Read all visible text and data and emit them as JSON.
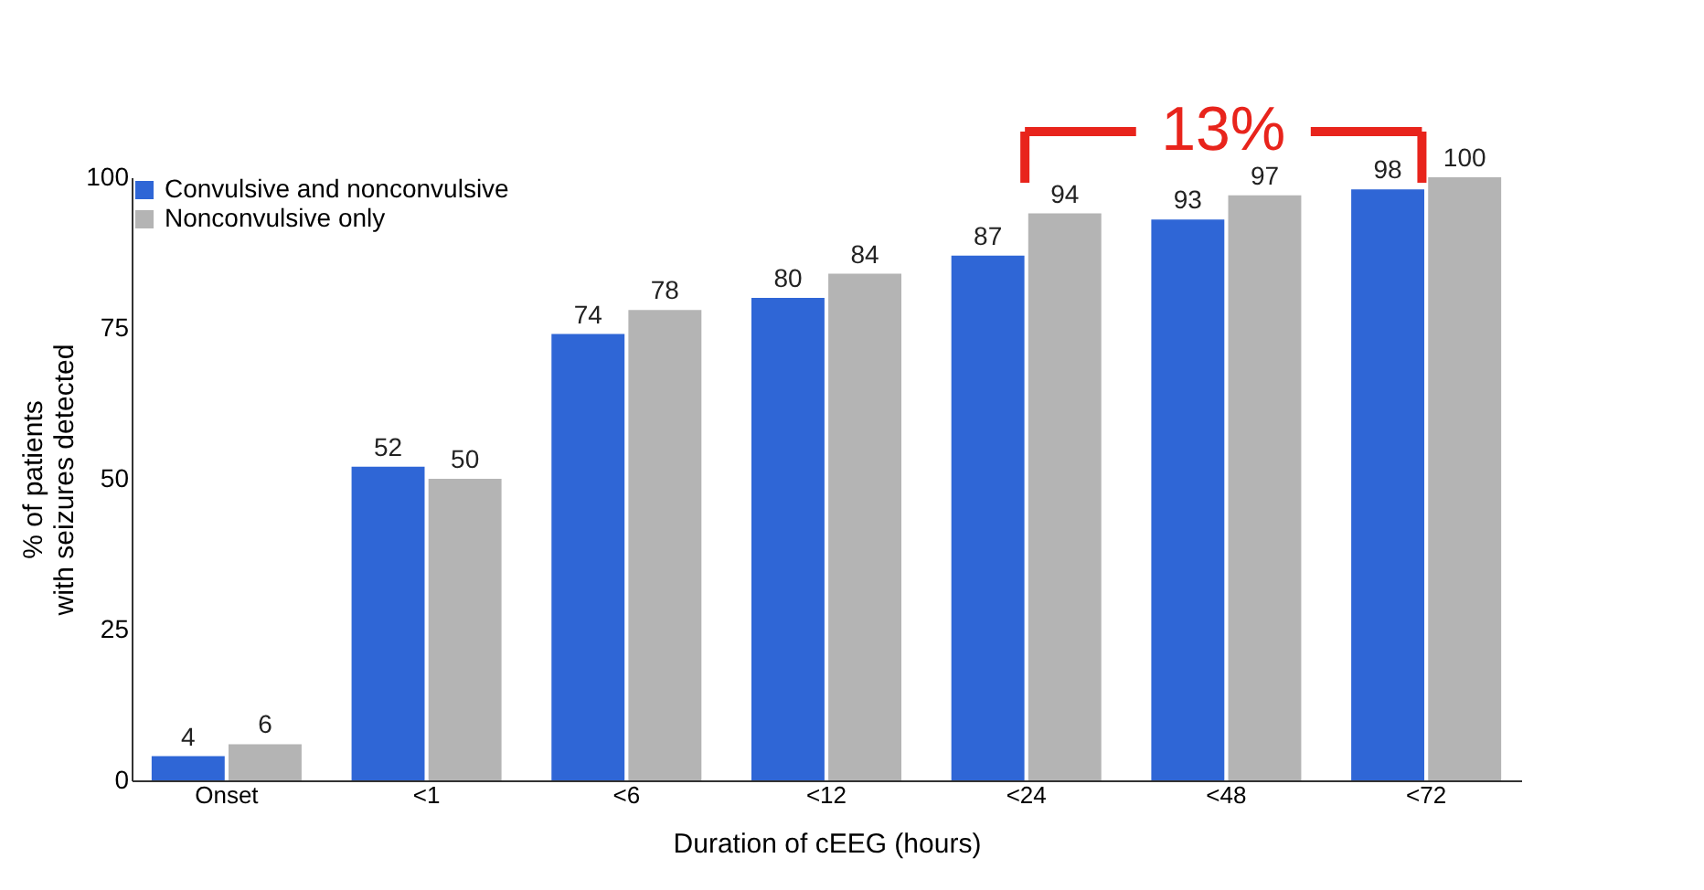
{
  "chart_data": {
    "type": "bar",
    "xlabel": "Duration of cEEG (hours)",
    "ylabel": "% of patients with seizures detected",
    "categories": [
      "Onset",
      "<1",
      "<6",
      "<12",
      "<24",
      "<48",
      "<72"
    ],
    "series": [
      {
        "name": "Convulsive and nonconvulsive",
        "color": "#2f66d6",
        "values": [
          4,
          52,
          74,
          80,
          87,
          93,
          98
        ]
      },
      {
        "name": "Nonconvulsive only",
        "color": "#b4b4b4",
        "values": [
          6,
          50,
          78,
          84,
          94,
          97,
          100
        ]
      }
    ],
    "ylim": [
      0,
      100
    ],
    "yticks": [
      0,
      25,
      50,
      75,
      100
    ],
    "grid": false,
    "legend": "top left",
    "data_labels": true,
    "annotations": [
      "13%"
    ]
  }
}
